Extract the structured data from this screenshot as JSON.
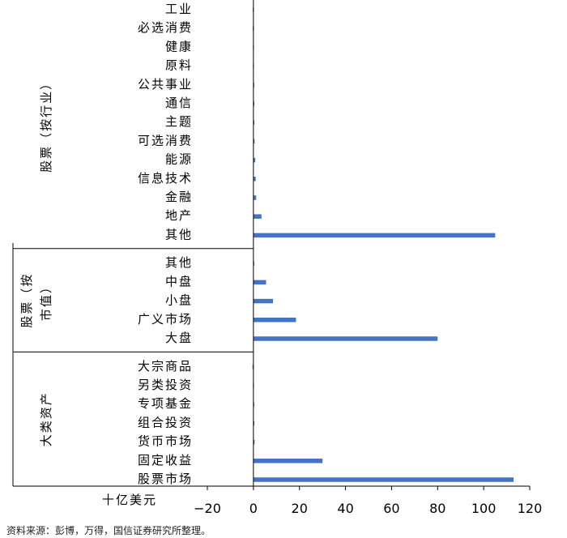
{
  "chart_data": {
    "type": "bar",
    "orientation": "horizontal",
    "xlim": [
      -20,
      120
    ],
    "xticks": [
      "−20",
      "0",
      "20",
      "40",
      "60",
      "80",
      "100",
      "120"
    ],
    "unit_label": "十亿美元",
    "bar_color": "#4472C4",
    "groups": [
      {
        "name": "股票（按行业）",
        "categories": [
          "工业",
          "必选消费",
          "健康",
          "原料",
          "公共事业",
          "通信",
          "主题",
          "可选消费",
          "能源",
          "信息技术",
          "金融",
          "地产",
          "其他"
        ],
        "values": [
          -0.3,
          -0.3,
          -0.2,
          -0.2,
          0.3,
          0.4,
          0.4,
          0.5,
          0.8,
          1.0,
          1.2,
          3.5,
          105
        ]
      },
      {
        "name": "股票（按市值）",
        "categories": [
          "其他",
          "中盘",
          "小盘",
          "广义市场",
          "大盘"
        ],
        "values": [
          0.3,
          5.5,
          8.5,
          18.5,
          80
        ]
      },
      {
        "name": "大类资产",
        "categories": [
          "大宗商品",
          "另类投资",
          "专项基金",
          "组合投资",
          "货币市场",
          "固定收益",
          "股票市场"
        ],
        "values": [
          -0.4,
          -0.2,
          0.3,
          0.4,
          0.5,
          30,
          113
        ]
      }
    ]
  },
  "footer": {
    "source": "资料来源：彭博，万得，国信证券研究所整理。"
  }
}
